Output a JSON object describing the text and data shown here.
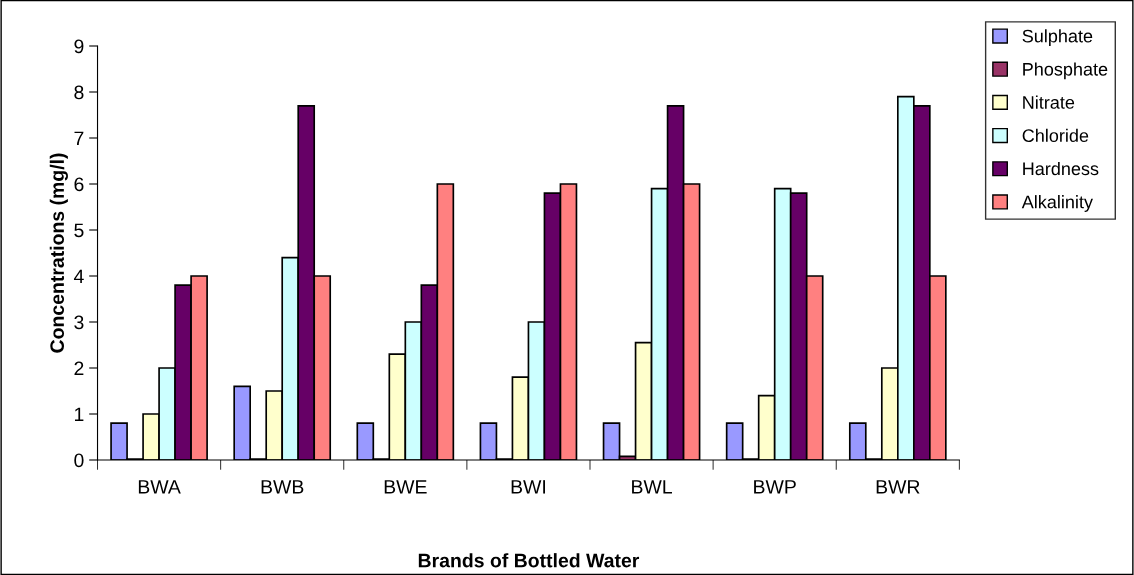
{
  "chart_data": {
    "type": "bar",
    "xlabel": "Brands of Bottled Water",
    "ylabel": "Concentrations (mg/l)",
    "categories": [
      "BWA",
      "BWB",
      "BWE",
      "BWI",
      "BWL",
      "BWP",
      "BWR"
    ],
    "series": [
      {
        "name": "Sulphate",
        "color": "#9999ff",
        "values": [
          0.8,
          1.6,
          0.8,
          0.8,
          0.8,
          0.8,
          0.8
        ]
      },
      {
        "name": "Phosphate",
        "color": "#993366",
        "values": [
          0.02,
          0.02,
          0.02,
          0.02,
          0.08,
          0.02,
          0.02
        ]
      },
      {
        "name": "Nitrate",
        "color": "#ffffcc",
        "values": [
          1.0,
          1.5,
          2.3,
          1.8,
          2.55,
          1.4,
          2.0
        ]
      },
      {
        "name": "Chloride",
        "color": "#ccffff",
        "values": [
          2.0,
          4.4,
          3.0,
          3.0,
          5.9,
          5.9,
          7.9
        ]
      },
      {
        "name": "Hardness",
        "color": "#660066",
        "values": [
          3.8,
          7.7,
          3.8,
          5.8,
          7.7,
          5.8,
          7.7
        ]
      },
      {
        "name": "Alkalinity",
        "color": "#ff8080",
        "values": [
          4.0,
          4.0,
          6.0,
          6.0,
          6.0,
          4.0,
          4.0
        ]
      }
    ],
    "ylim": [
      0,
      9
    ],
    "yticks": [
      0,
      1,
      2,
      3,
      4,
      5,
      6,
      7,
      8,
      9
    ],
    "grid": false,
    "legend": "right"
  }
}
